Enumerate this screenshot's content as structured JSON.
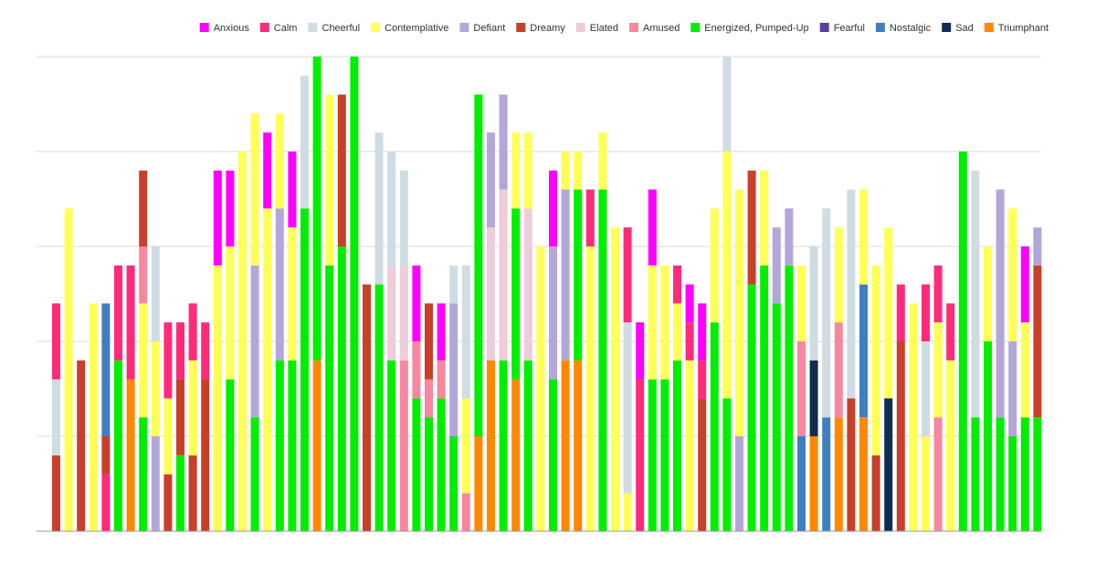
{
  "chart_data": {
    "type": "bar",
    "stacked": true,
    "ylim": [
      0,
      25
    ],
    "grid": true,
    "legend_position": "top-right",
    "series": [
      {
        "name": "Anxious",
        "color": "#ff00ff"
      },
      {
        "name": "Calm",
        "color": "#ff2a7a"
      },
      {
        "name": "Cheerful",
        "color": "#cfdde3"
      },
      {
        "name": "Contemplative",
        "color": "#ffff55"
      },
      {
        "name": "Defiant",
        "color": "#b3a6d8"
      },
      {
        "name": "Dreamy",
        "color": "#c8402a"
      },
      {
        "name": "Elated",
        "color": "#eccdd9"
      },
      {
        "name": "Amused",
        "color": "#f6879f"
      },
      {
        "name": "Energized, Pumped-Up",
        "color": "#00ee00"
      },
      {
        "name": "Fearful",
        "color": "#5a3f9e"
      },
      {
        "name": "Nostalgic",
        "color": "#3f7fbf"
      },
      {
        "name": "Sad",
        "color": "#0e2d52"
      },
      {
        "name": "Triumphant",
        "color": "#ff8800"
      }
    ],
    "bars": [
      [
        [
          "Dreamy",
          4
        ],
        [
          "Cheerful",
          4
        ],
        [
          "Calm",
          4
        ]
      ],
      [
        [
          "Contemplative",
          17
        ]
      ],
      [
        [
          "Dreamy",
          9
        ]
      ],
      [
        [
          "Contemplative",
          12
        ]
      ],
      [
        [
          "Calm",
          3
        ],
        [
          "Dreamy",
          2
        ],
        [
          "Nostalgic",
          7
        ]
      ],
      [
        [
          "Energized, Pumped-Up",
          9
        ],
        [
          "Calm",
          5
        ]
      ],
      [
        [
          "Triumphant",
          8
        ],
        [
          "Calm",
          6
        ]
      ],
      [
        [
          "Energized, Pumped-Up",
          6
        ],
        [
          "Contemplative",
          6
        ],
        [
          "Amused",
          3
        ],
        [
          "Dreamy",
          4
        ]
      ],
      [
        [
          "Defiant",
          5
        ],
        [
          "Contemplative",
          5
        ],
        [
          "Cheerful",
          5
        ]
      ],
      [
        [
          "Dreamy",
          3
        ],
        [
          "Contemplative",
          4
        ],
        [
          "Calm",
          4
        ]
      ],
      [
        [
          "Energized, Pumped-Up",
          4
        ],
        [
          "Dreamy",
          4
        ],
        [
          "Calm",
          3
        ]
      ],
      [
        [
          "Dreamy",
          4
        ],
        [
          "Contemplative",
          5
        ],
        [
          "Calm",
          3
        ]
      ],
      [
        [
          "Dreamy",
          8
        ],
        [
          "Calm",
          3
        ]
      ],
      [
        [
          "Contemplative",
          14
        ],
        [
          "Anxious",
          5
        ]
      ],
      [
        [
          "Energized, Pumped-Up",
          8
        ],
        [
          "Contemplative",
          7
        ],
        [
          "Anxious",
          4
        ]
      ],
      [
        [
          "Contemplative",
          20
        ]
      ],
      [
        [
          "Energized, Pumped-Up",
          6
        ],
        [
          "Defiant",
          8
        ],
        [
          "Contemplative",
          8
        ]
      ],
      [
        [
          "Contemplative",
          17
        ],
        [
          "Anxious",
          4
        ]
      ],
      [
        [
          "Energized, Pumped-Up",
          9
        ],
        [
          "Defiant",
          8
        ],
        [
          "Contemplative",
          5
        ]
      ],
      [
        [
          "Energized, Pumped-Up",
          9
        ],
        [
          "Contemplative",
          7
        ],
        [
          "Anxious",
          4
        ]
      ],
      [
        [
          "Energized, Pumped-Up",
          17
        ],
        [
          "Cheerful",
          7
        ]
      ],
      [
        [
          "Triumphant",
          9
        ],
        [
          "Energized, Pumped-Up",
          16
        ]
      ],
      [
        [
          "Energized, Pumped-Up",
          14
        ],
        [
          "Contemplative",
          9
        ]
      ],
      [
        [
          "Energized, Pumped-Up",
          15
        ],
        [
          "Dreamy",
          8
        ]
      ],
      [
        [
          "Energized, Pumped-Up",
          25
        ]
      ],
      [
        [
          "Dreamy",
          13
        ]
      ],
      [
        [
          "Energized, Pumped-Up",
          13
        ],
        [
          "Cheerful",
          8
        ]
      ],
      [
        [
          "Energized, Pumped-Up",
          9
        ],
        [
          "Elated",
          5
        ],
        [
          "Cheerful",
          6
        ]
      ],
      [
        [
          "Amused",
          9
        ],
        [
          "Elated",
          5
        ],
        [
          "Cheerful",
          5
        ]
      ],
      [
        [
          "Energized, Pumped-Up",
          7
        ],
        [
          "Amused",
          3
        ],
        [
          "Anxious",
          4
        ]
      ],
      [
        [
          "Energized, Pumped-Up",
          6
        ],
        [
          "Amused",
          2
        ],
        [
          "Dreamy",
          4
        ]
      ],
      [
        [
          "Energized, Pumped-Up",
          7
        ],
        [
          "Amused",
          2
        ],
        [
          "Anxious",
          3
        ]
      ],
      [
        [
          "Energized, Pumped-Up",
          5
        ],
        [
          "Defiant",
          7
        ],
        [
          "Cheerful",
          2
        ]
      ],
      [
        [
          "Amused",
          2
        ],
        [
          "Contemplative",
          5
        ],
        [
          "Cheerful",
          7
        ]
      ],
      [
        [
          "Triumphant",
          5
        ],
        [
          "Energized, Pumped-Up",
          18
        ]
      ],
      [
        [
          "Triumphant",
          9
        ],
        [
          "Elated",
          7
        ],
        [
          "Defiant",
          5
        ]
      ],
      [
        [
          "Energized, Pumped-Up",
          9
        ],
        [
          "Elated",
          9
        ],
        [
          "Defiant",
          5
        ]
      ],
      [
        [
          "Triumphant",
          8
        ],
        [
          "Energized, Pumped-Up",
          9
        ],
        [
          "Contemplative",
          4
        ]
      ],
      [
        [
          "Energized, Pumped-Up",
          9
        ],
        [
          "Elated",
          8
        ],
        [
          "Contemplative",
          4
        ]
      ],
      [
        [
          "Contemplative",
          15
        ]
      ],
      [
        [
          "Energized, Pumped-Up",
          8
        ],
        [
          "Defiant",
          7
        ],
        [
          "Anxious",
          4
        ]
      ],
      [
        [
          "Triumphant",
          9
        ],
        [
          "Defiant",
          9
        ],
        [
          "Contemplative",
          2
        ]
      ],
      [
        [
          "Triumphant",
          9
        ],
        [
          "Energized, Pumped-Up",
          9
        ],
        [
          "Contemplative",
          2
        ]
      ],
      [
        [
          "Contemplative",
          15
        ],
        [
          "Calm",
          3
        ]
      ],
      [
        [
          "Energized, Pumped-Up",
          18
        ],
        [
          "Contemplative",
          3
        ]
      ],
      [
        [
          "Contemplative",
          16
        ]
      ],
      [
        [
          "Contemplative",
          2
        ],
        [
          "Cheerful",
          9
        ],
        [
          "Calm",
          5
        ]
      ],
      [
        [
          "Calm",
          8
        ],
        [
          "Anxious",
          3
        ]
      ],
      [
        [
          "Energized, Pumped-Up",
          8
        ],
        [
          "Contemplative",
          6
        ],
        [
          "Anxious",
          4
        ]
      ],
      [
        [
          "Energized, Pumped-Up",
          8
        ],
        [
          "Contemplative",
          6
        ]
      ],
      [
        [
          "Energized, Pumped-Up",
          9
        ],
        [
          "Contemplative",
          3
        ],
        [
          "Calm",
          2
        ]
      ],
      [
        [
          "Contemplative",
          9
        ],
        [
          "Calm",
          2
        ],
        [
          "Anxious",
          2
        ]
      ],
      [
        [
          "Dreamy",
          7
        ],
        [
          "Calm",
          2
        ],
        [
          "Anxious",
          3
        ]
      ],
      [
        [
          "Energized, Pumped-Up",
          11
        ],
        [
          "Contemplative",
          6
        ]
      ],
      [
        [
          "Energized, Pumped-Up",
          7
        ],
        [
          "Contemplative",
          13
        ],
        [
          "Cheerful",
          5
        ]
      ],
      [
        [
          "Defiant",
          5
        ],
        [
          "Contemplative",
          13
        ]
      ],
      [
        [
          "Energized, Pumped-Up",
          13
        ],
        [
          "Dreamy",
          6
        ]
      ],
      [
        [
          "Energized, Pumped-Up",
          14
        ],
        [
          "Contemplative",
          5
        ]
      ],
      [
        [
          "Energized, Pumped-Up",
          12
        ],
        [
          "Defiant",
          4
        ]
      ],
      [
        [
          "Energized, Pumped-Up",
          14
        ],
        [
          "Defiant",
          3
        ]
      ],
      [
        [
          "Nostalgic",
          5
        ],
        [
          "Amused",
          5
        ],
        [
          "Contemplative",
          4
        ]
      ],
      [
        [
          "Triumphant",
          5
        ],
        [
          "Sad",
          4
        ],
        [
          "Cheerful",
          6
        ]
      ],
      [
        [
          "Nostalgic",
          6
        ],
        [
          "Cheerful",
          11
        ]
      ],
      [
        [
          "Triumphant",
          6
        ],
        [
          "Amused",
          5
        ],
        [
          "Contemplative",
          5
        ]
      ],
      [
        [
          "Dreamy",
          7
        ],
        [
          "Cheerful",
          11
        ]
      ],
      [
        [
          "Triumphant",
          6
        ],
        [
          "Nostalgic",
          7
        ],
        [
          "Contemplative",
          5
        ]
      ],
      [
        [
          "Dreamy",
          4
        ],
        [
          "Contemplative",
          10
        ]
      ],
      [
        [
          "Sad",
          7
        ],
        [
          "Contemplative",
          9
        ]
      ],
      [
        [
          "Dreamy",
          10
        ],
        [
          "Calm",
          3
        ]
      ],
      [
        [
          "Contemplative",
          12
        ]
      ],
      [
        [
          "Contemplative",
          5
        ],
        [
          "Cheerful",
          5
        ],
        [
          "Calm",
          3
        ]
      ],
      [
        [
          "Amused",
          6
        ],
        [
          "Contemplative",
          5
        ],
        [
          "Calm",
          3
        ]
      ],
      [
        [
          "Contemplative",
          9
        ],
        [
          "Calm",
          3
        ]
      ],
      [
        [
          "Energized, Pumped-Up",
          20
        ]
      ],
      [
        [
          "Energized, Pumped-Up",
          6
        ],
        [
          "Cheerful",
          13
        ]
      ],
      [
        [
          "Energized, Pumped-Up",
          10
        ],
        [
          "Contemplative",
          5
        ]
      ],
      [
        [
          "Energized, Pumped-Up",
          6
        ],
        [
          "Defiant",
          12
        ]
      ],
      [
        [
          "Energized, Pumped-Up",
          5
        ],
        [
          "Defiant",
          5
        ],
        [
          "Contemplative",
          7
        ]
      ],
      [
        [
          "Energized, Pumped-Up",
          6
        ],
        [
          "Contemplative",
          5
        ],
        [
          "Anxious",
          4
        ]
      ],
      [
        [
          "Energized, Pumped-Up",
          6
        ],
        [
          "Dreamy",
          8
        ],
        [
          "Defiant",
          2
        ]
      ]
    ]
  }
}
